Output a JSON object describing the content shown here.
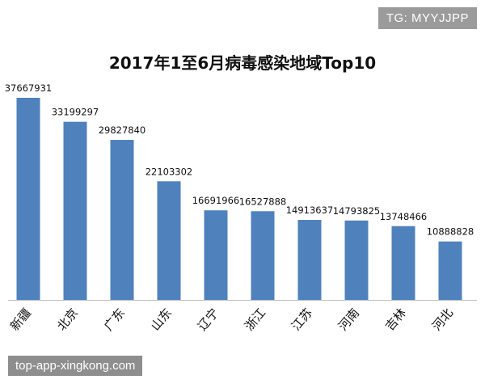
{
  "watermark_top": "TG: MYYJJPP",
  "watermark_bottom": "top-app-xingkong.com",
  "colors": {
    "bar": "#4f81bd",
    "axis": "#bfbfbf",
    "text": "#111111"
  },
  "chart_data": {
    "type": "bar",
    "title": "2017年1至6月病毒感染地域Top10",
    "categories": [
      "新疆",
      "北京",
      "广东",
      "山东",
      "辽宁",
      "浙江",
      "江苏",
      "河南",
      "吉林",
      "河北"
    ],
    "values": [
      37667931,
      33199297,
      29827840,
      22103302,
      16691966,
      16527888,
      14913637,
      14793825,
      13748466,
      10888828
    ],
    "data_labels": [
      "37667931",
      "33199297",
      "29827840",
      "22103302",
      "16691966",
      "16527888",
      "14913637",
      "14793825",
      "13748466",
      "10888828"
    ],
    "xlabel": "",
    "ylabel": "",
    "ylim": [
      0,
      40000000
    ],
    "grid": false,
    "legend": "none"
  }
}
